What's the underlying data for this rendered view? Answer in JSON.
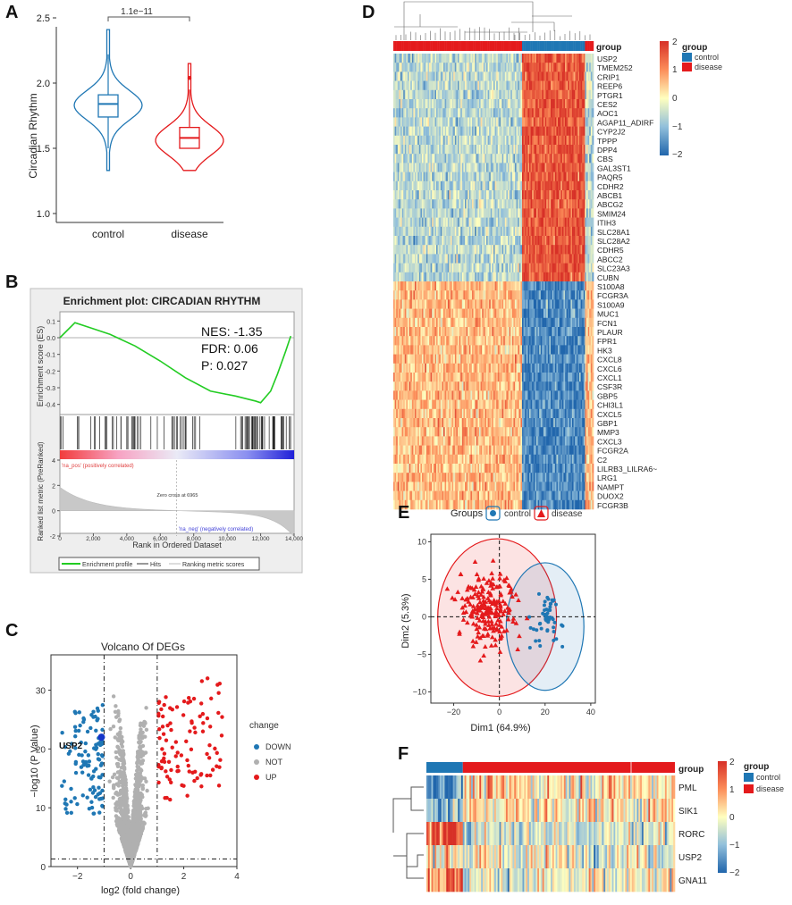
{
  "panels": {
    "a": "A",
    "b": "B",
    "c": "C",
    "d": "D",
    "e": "E",
    "f": "F"
  },
  "colors": {
    "control": "#1f77b4",
    "disease": "#e41a1c",
    "up": "#e41a1c",
    "down": "#1f77b4",
    "not": "#b0b0b0",
    "green": "#22cc22",
    "hot": "#d73027",
    "cold": "#2166ac",
    "mid": "#ffffbf"
  },
  "chart_data": [
    {
      "id": "A",
      "type": "violin",
      "ylabel": "Circadian Rhythm",
      "categories": [
        "control",
        "disease"
      ],
      "ylim": [
        1.0,
        2.5
      ],
      "yticks": [
        1.0,
        1.5,
        2.0,
        2.5
      ],
      "ytick_labels": [
        "1.0",
        "1.5",
        "2.0",
        "2.5"
      ],
      "significance": "1.1e−11",
      "boxes": [
        {
          "name": "control",
          "min": 1.33,
          "q1": 1.74,
          "median": 1.84,
          "q3": 1.91,
          "max": 2.42
        },
        {
          "name": "disease",
          "min": 1.33,
          "q1": 1.5,
          "median": 1.58,
          "q3": 1.66,
          "max": 2.15,
          "outlier": 2.04
        }
      ]
    },
    {
      "id": "B",
      "type": "line",
      "title": "Enrichment plot: CIRCADIAN RHYTHM",
      "ylabel": "Enrichment score (ES)",
      "ylim": [
        -0.45,
        0.15
      ],
      "yticks": [
        0.1,
        0.0,
        -0.1,
        -0.2,
        -0.3,
        -0.4
      ],
      "ytick_labels": [
        "0.1",
        "0.0",
        "-0.1",
        "-0.2",
        "-0.3",
        "-0.4"
      ],
      "stats": [
        "NES: -1.35",
        "FDR: 0.06",
        "P: 0.027"
      ],
      "es_curve": {
        "x": [
          0,
          900,
          1800,
          3000,
          4500,
          6000,
          7500,
          9000,
          10500,
          11700,
          12000,
          12600,
          13000,
          13500,
          13800
        ],
        "y": [
          0.0,
          0.09,
          0.06,
          0.02,
          -0.05,
          -0.14,
          -0.24,
          -0.32,
          -0.35,
          -0.38,
          -0.39,
          -0.32,
          -0.22,
          -0.08,
          0.01
        ]
      },
      "rank_ylabel": "Ranked list metric (PreRanked)",
      "rank_ylim": [
        -2,
        4
      ],
      "rank_yticks": [
        4,
        2,
        0,
        -2
      ],
      "rank_ytick_labels": [
        "4",
        "2",
        "0",
        "-2"
      ],
      "xlabel": "Rank in Ordered Dataset",
      "xlim": [
        0,
        14000
      ],
      "xticks": [
        0,
        2000,
        4000,
        6000,
        8000,
        10000,
        12000,
        14000
      ],
      "xtick_labels": [
        "0",
        "2,000",
        "4,000",
        "6,000",
        "8,000",
        "10,000",
        "12,000",
        "14,000"
      ],
      "pos_label": "'na_pos' (positively correlated)",
      "neg_label": "'na_neg' (negatively correlated)",
      "zero_cross": "Zero cross at 6965",
      "legend": [
        "Enrichment profile",
        "Hits",
        "Ranking metric scores"
      ]
    },
    {
      "id": "C",
      "type": "scatter",
      "title": "Volcano Of DEGs",
      "xlabel": "log2 (fold change)",
      "ylabel": "−log10 (P Value)",
      "xlim": [
        -3,
        4
      ],
      "ylim": [
        0,
        36
      ],
      "xticks": [
        -2,
        0,
        2,
        4
      ],
      "xtick_labels": [
        "−2",
        "0",
        "2",
        "4"
      ],
      "yticks": [
        0,
        10,
        20,
        30
      ],
      "ytick_labels": [
        "0",
        "10",
        "20",
        "30"
      ],
      "thresholds": {
        "fc": [
          -1,
          1
        ],
        "p": 1.3
      },
      "highlight": {
        "label": "USP2",
        "x": -1.1,
        "y": 22
      },
      "legend_title": "change",
      "legend": [
        "DOWN",
        "NOT",
        "UP"
      ]
    },
    {
      "id": "D",
      "type": "heatmap",
      "genes": [
        "USP2",
        "TMEM252",
        "CRIP1",
        "REEP6",
        "PTGR1",
        "CES2",
        "AOC1",
        "AGAP11_ADIRF",
        "CYP2J2",
        "TPPP",
        "DPP4",
        "CBS",
        "GAL3ST1",
        "PAQR5",
        "CDHR2",
        "ABCB1",
        "ABCG2",
        "SMIM24",
        "ITIH3",
        "SLC28A1",
        "SLC28A2",
        "CDHR5",
        "ABCC2",
        "SLC23A3",
        "CUBN",
        "S100A8",
        "FCGR3A",
        "S100A9",
        "MUC1",
        "FCN1",
        "PLAUR",
        "FPR1",
        "HK3",
        "CXCL8",
        "CXCL6",
        "CXCL1",
        "CSF3R",
        "GBP5",
        "CHI3L1",
        "CXCL5",
        "GBP1",
        "MMP3",
        "CXCL3",
        "FCGR2A",
        "C2",
        "LILRB3_LILRA6~",
        "LRG1",
        "NAMPT",
        "DUOX2",
        "FCGR3B"
      ],
      "up_in_control": 25,
      "annotation_title": "group",
      "legend_title": "group",
      "legend": [
        "control",
        "disease"
      ],
      "scale_ticks": [
        2,
        1,
        0,
        -1,
        -2
      ],
      "scale_labels": [
        "2",
        "1",
        "0",
        "−1",
        "−2"
      ]
    },
    {
      "id": "E",
      "type": "scatter",
      "legend_title": "Groups",
      "legend": [
        "control",
        "disease"
      ],
      "xlabel": "Dim1 (64.9%)",
      "ylabel": "Dim2 (5.3%)",
      "xlim": [
        -30,
        42
      ],
      "ylim": [
        -11.5,
        11
      ],
      "xticks": [
        -20,
        0,
        20,
        40
      ],
      "xtick_labels": [
        "−20",
        "0",
        "20",
        "40"
      ],
      "yticks": [
        10,
        5,
        0,
        -5,
        -10
      ],
      "ytick_labels": [
        "10",
        "5",
        "0",
        "−5",
        "−10"
      ],
      "centroids": [
        {
          "name": "control",
          "x": 21,
          "y": -0.3
        },
        {
          "name": "disease",
          "x": -4.8,
          "y": 0.9
        }
      ],
      "ellipses": [
        {
          "name": "control",
          "cx": 20,
          "cy": -1.3,
          "rx": 17,
          "ry": 8.5
        },
        {
          "name": "disease",
          "cx": -1,
          "cy": -0.1,
          "rx": 26,
          "ry": 10.5
        }
      ]
    },
    {
      "id": "F",
      "type": "heatmap",
      "genes": [
        "PML",
        "SIK1",
        "RORC",
        "USP2",
        "GNA11"
      ],
      "annotation_title": "group",
      "legend_title": "group",
      "legend": [
        "control",
        "disease"
      ],
      "scale_ticks": [
        2,
        1,
        0,
        -1,
        -2
      ],
      "scale_labels": [
        "2",
        "1",
        "0",
        "−1",
        "−2"
      ]
    }
  ]
}
